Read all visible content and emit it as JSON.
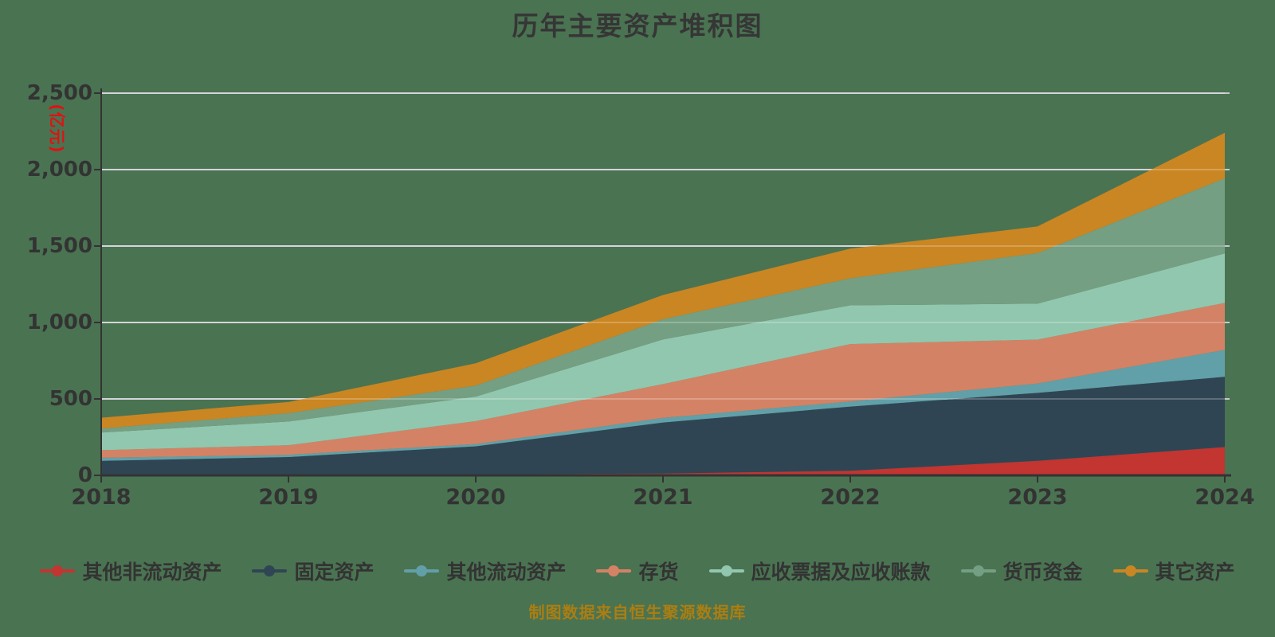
{
  "title": "历年主要资产堆积图",
  "y_axis": {
    "unit_label": "(亿元)",
    "tick_labels": [
      "0",
      "500",
      "1,000",
      "1,500",
      "2,000",
      "2,500"
    ],
    "tick_values": [
      0,
      500,
      1000,
      1500,
      2000,
      2500
    ]
  },
  "footer": {
    "source_note": "制图数据来自恒生聚源数据库"
  },
  "style_colors": {
    "background": "#4a7352",
    "axis_line": "#333333",
    "grid_line": "#c7c9ce",
    "text": "#333333",
    "unit_label": "#e01212",
    "footer_text": "#ab7e12"
  },
  "chart_data": {
    "type": "area",
    "stacked": true,
    "title": "历年主要资产堆积图",
    "ylabel": "(亿元)",
    "ylim": [
      0,
      2500
    ],
    "grid": true,
    "legend_position": "bottom",
    "x": [
      "2018",
      "2019",
      "2020",
      "2021",
      "2022",
      "2023",
      "2024"
    ],
    "series": [
      {
        "name": "其他非流动资产",
        "color": "#c23531",
        "values": [
          5,
          5,
          6,
          12,
          30,
          95,
          185
        ]
      },
      {
        "name": "固定资产",
        "color": "#2f4554",
        "values": [
          90,
          115,
          184,
          334,
          420,
          445,
          460
        ]
      },
      {
        "name": "其他流动资产",
        "color": "#61a0a8",
        "values": [
          20,
          15,
          15,
          30,
          34,
          61,
          176
        ]
      },
      {
        "name": "存货",
        "color": "#d48265",
        "values": [
          50,
          62,
          150,
          221,
          375,
          287,
          307
        ]
      },
      {
        "name": "应收票据及应收账款",
        "color": "#91c7ae",
        "values": [
          115,
          155,
          160,
          292,
          253,
          235,
          324
        ]
      },
      {
        "name": "货币资金",
        "color": "#749f83",
        "values": [
          26,
          55,
          72,
          132,
          177,
          331,
          491
        ]
      },
      {
        "name": "其它资产",
        "color": "#ca8622",
        "values": [
          71,
          73,
          146,
          159,
          194,
          174,
          298
        ]
      }
    ],
    "stacked_totals": [
      377,
      480,
      733,
      1180,
      1483,
      1628,
      2241
    ]
  }
}
